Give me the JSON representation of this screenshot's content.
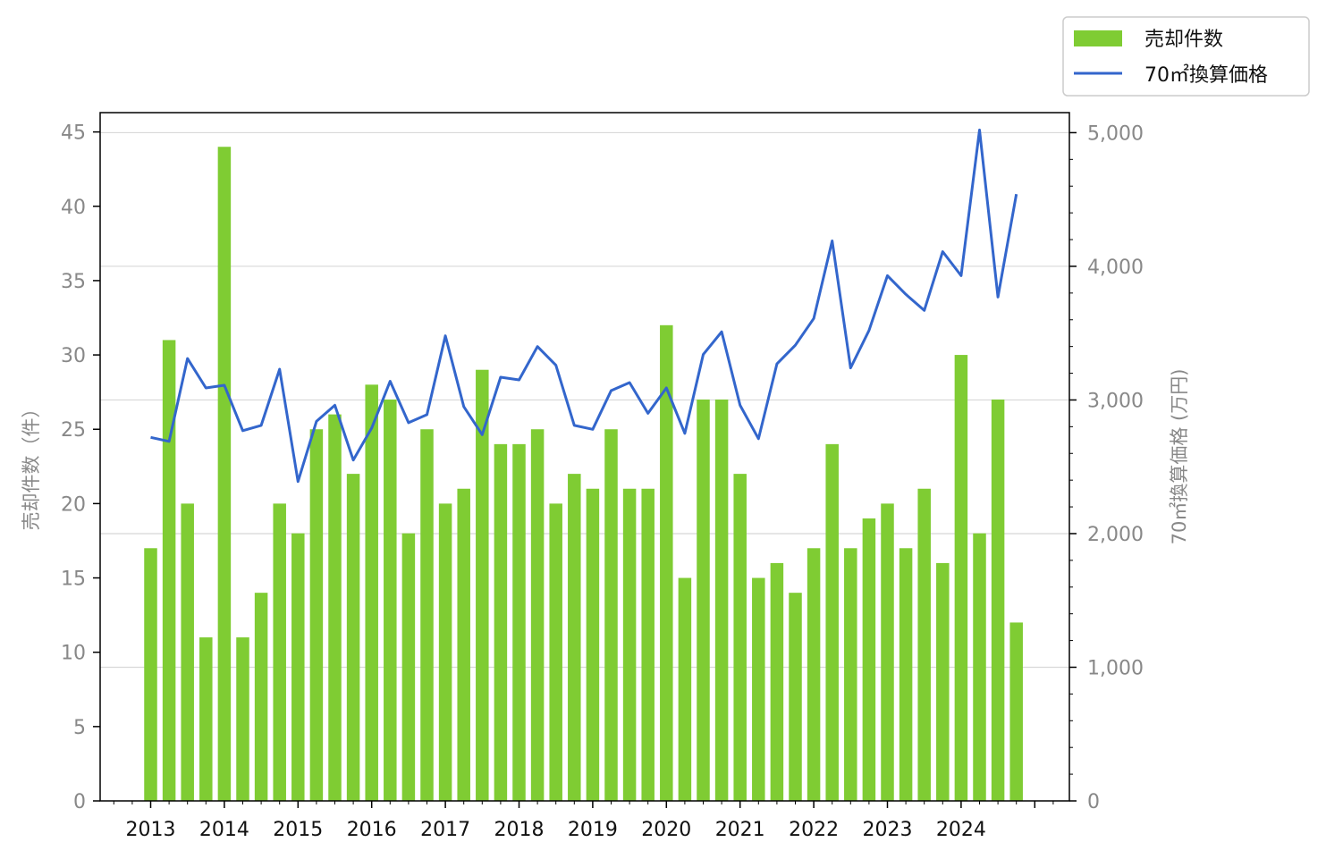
{
  "chart_data": {
    "type": "bar+line",
    "x_labels": [
      "2013",
      "2014",
      "2015",
      "2016",
      "2017",
      "2018",
      "2019",
      "2020",
      "2021",
      "2022",
      "2023",
      "2024"
    ],
    "ylabel_left": "売却件数（件）",
    "ylabel_right": "70㎡換算価格 (万円)",
    "left_ticks": [
      "0",
      "5",
      "10",
      "15",
      "20",
      "25",
      "30",
      "35",
      "40",
      "45"
    ],
    "right_ticks": [
      "0",
      "1,000",
      "2,000",
      "3,000",
      "4,000",
      "5,000"
    ],
    "ylim_left": [
      0,
      46.3
    ],
    "ylim_right": [
      0,
      5150
    ],
    "grid": "horizontal, right axis",
    "legend_position": "top-right, outside plot",
    "periods_per_year": 4,
    "start_year": 2013,
    "colors": {
      "bar": "#7fcc33",
      "line": "#3366cc"
    },
    "series": [
      {
        "name": "売却件数",
        "type": "bar",
        "axis": "left",
        "values": [
          17,
          31,
          20,
          11,
          44,
          11,
          14,
          20,
          18,
          25,
          26,
          22,
          28,
          27,
          18,
          25,
          20,
          21,
          29,
          24,
          24,
          25,
          20,
          22,
          21,
          25,
          21,
          21,
          32,
          15,
          27,
          27,
          22,
          15,
          16,
          14,
          17,
          24,
          17,
          19,
          20,
          17,
          21,
          16,
          30,
          18,
          27,
          12
        ]
      },
      {
        "name": "70㎡換算価格",
        "type": "line",
        "axis": "right",
        "values": [
          2720,
          2690,
          3310,
          3090,
          3110,
          2770,
          2810,
          3230,
          2390,
          2840,
          2960,
          2550,
          2790,
          3140,
          2830,
          2890,
          3480,
          2950,
          2740,
          3170,
          3150,
          3400,
          3260,
          2810,
          2780,
          3070,
          3130,
          2900,
          3090,
          2750,
          3340,
          3510,
          2960,
          2710,
          3270,
          3410,
          3610,
          4190,
          3240,
          3520,
          3930,
          3790,
          3670,
          4110,
          3930,
          5020,
          3770,
          4540
        ]
      }
    ]
  }
}
